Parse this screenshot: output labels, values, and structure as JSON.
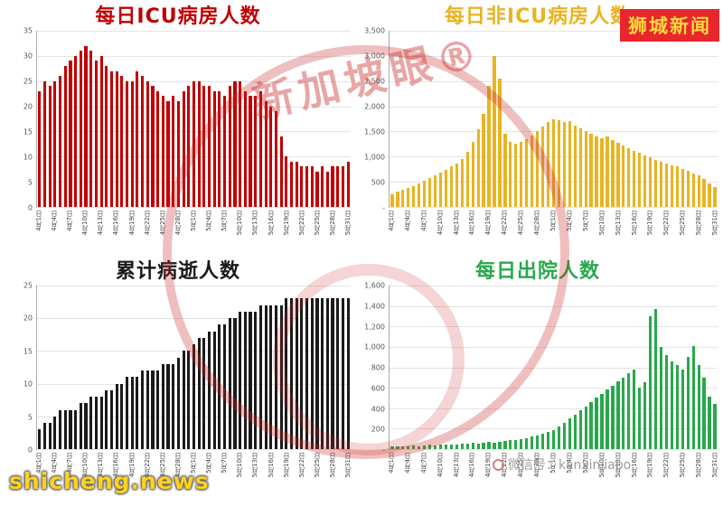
{
  "page": {
    "badge": "狮城新闻",
    "site": "shicheng.news",
    "wechat": "微信号：kanxinjiapo",
    "stamp": "新加坡眼®"
  },
  "x_axis": {
    "tick_every": 3,
    "tick_labels": [
      "4月1日",
      "4月4日",
      "4月7日",
      "4月10日",
      "4月13日",
      "4月16日",
      "4月19日",
      "4月22日",
      "4月25日",
      "4月28日",
      "5月1日",
      "5月4日",
      "5月7日",
      "5月10日",
      "5月13日",
      "5月16日",
      "5月19日",
      "5月22日",
      "5月25日",
      "5月28日",
      "5月31日"
    ]
  },
  "chart_data": [
    {
      "type": "bar",
      "title": "每日ICU病房人数",
      "color": "#c00000",
      "ylim": [
        0,
        35
      ],
      "yticks": [
        "35",
        "30",
        "25",
        "20",
        "15",
        "10",
        "5",
        "0"
      ],
      "values": [
        23,
        25,
        24,
        25,
        26,
        28,
        29,
        30,
        31,
        32,
        31,
        29,
        30,
        28,
        27,
        27,
        26,
        25,
        25,
        27,
        26,
        25,
        24,
        23,
        22,
        21,
        22,
        21,
        23,
        24,
        25,
        25,
        24,
        24,
        23,
        23,
        22,
        24,
        25,
        25,
        23,
        22,
        22,
        23,
        21,
        20,
        19,
        14,
        10,
        9,
        9,
        8,
        8,
        8,
        7,
        8,
        7,
        8,
        8,
        8,
        9
      ]
    },
    {
      "type": "bar",
      "title": "每日非ICU病房人数",
      "color": "#e9b421",
      "ylim": [
        0,
        3500
      ],
      "yticks": [
        "3,500",
        "3,000",
        "2,500",
        "2,000",
        "1,500",
        "1,000",
        "500",
        "-"
      ],
      "values": [
        250,
        300,
        340,
        380,
        420,
        470,
        520,
        570,
        620,
        680,
        740,
        800,
        870,
        950,
        1100,
        1300,
        1550,
        1850,
        2400,
        3000,
        2550,
        1450,
        1300,
        1250,
        1300,
        1350,
        1420,
        1500,
        1600,
        1680,
        1750,
        1720,
        1680,
        1700,
        1620,
        1560,
        1500,
        1450,
        1400,
        1360,
        1400,
        1320,
        1270,
        1220,
        1170,
        1120,
        1080,
        1030,
        980,
        940,
        900,
        870,
        830,
        800,
        760,
        720,
        670,
        620,
        560,
        470,
        400
      ]
    },
    {
      "type": "bar",
      "title": "累计病逝人数",
      "color": "#1a1a1a",
      "ylim": [
        0,
        25
      ],
      "yticks": [
        "25",
        "20",
        "15",
        "10",
        "5",
        "0"
      ],
      "values": [
        3,
        4,
        4,
        5,
        6,
        6,
        6,
        6,
        7,
        7,
        8,
        8,
        8,
        9,
        9,
        10,
        10,
        11,
        11,
        11,
        12,
        12,
        12,
        12,
        13,
        13,
        13,
        14,
        15,
        15,
        16,
        17,
        17,
        18,
        18,
        19,
        19,
        20,
        20,
        21,
        21,
        21,
        21,
        22,
        22,
        22,
        22,
        22,
        23,
        23,
        23,
        23,
        23,
        23,
        23,
        23,
        23,
        23,
        23,
        23,
        23
      ]
    },
    {
      "type": "bar",
      "title": "每日出院人数",
      "color": "#28a84b",
      "ylim": [
        0,
        1600
      ],
      "yticks": [
        "1,600",
        "1,400",
        "1,200",
        "1,000",
        "800",
        "600",
        "400",
        "200",
        "-"
      ],
      "values": [
        25,
        30,
        25,
        30,
        35,
        30,
        35,
        40,
        35,
        40,
        45,
        40,
        45,
        50,
        55,
        60,
        55,
        65,
        70,
        65,
        75,
        80,
        85,
        90,
        100,
        110,
        120,
        130,
        150,
        170,
        190,
        220,
        260,
        300,
        340,
        380,
        420,
        460,
        500,
        540,
        580,
        620,
        660,
        700,
        740,
        780,
        600,
        650,
        1300,
        1370,
        1000,
        920,
        860,
        820,
        780,
        900,
        1010,
        820,
        700,
        510,
        440
      ]
    }
  ]
}
